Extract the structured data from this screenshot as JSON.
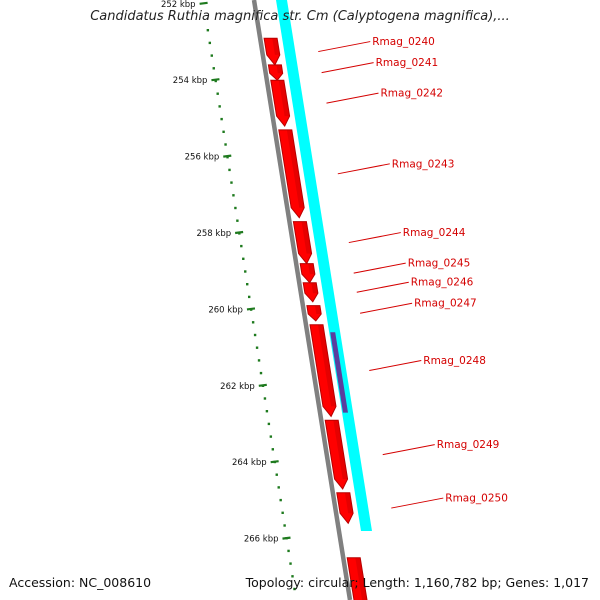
{
  "title": "Candidatus Ruthia magnifica str. Cm (Calyptogena magnifica),...",
  "footer": {
    "accession": "Accession: NC_008610",
    "summary": "Topology: circular; Length: 1,160,782 bp; Genes: 1,017"
  },
  "colors": {
    "forward_cds": "#ff0000",
    "forward_cds_shade": "#b80000",
    "feature_track": "#00ffff",
    "feature_highlight": "#5a3f9e",
    "backbone": "#808080",
    "ticks": "#1e7a1e",
    "label": "#d40000"
  },
  "ruler": {
    "ticks": [
      {
        "kbp": 252,
        "label": "252 kbp"
      },
      {
        "kbp": 254,
        "label": "254 kbp"
      },
      {
        "kbp": 256,
        "label": "256 kbp"
      },
      {
        "kbp": 258,
        "label": "258 kbp"
      },
      {
        "kbp": 260,
        "label": "260 kbp"
      },
      {
        "kbp": 262,
        "label": "262 kbp"
      },
      {
        "kbp": 264,
        "label": "264 kbp"
      },
      {
        "kbp": 266,
        "label": "266 kbp"
      }
    ]
  },
  "genes": [
    {
      "name": "Rmag_0240",
      "start_kbp": 252.9,
      "end_kbp": 253.6
    },
    {
      "name": "Rmag_0241",
      "start_kbp": 253.6,
      "end_kbp": 254.0
    },
    {
      "name": "Rmag_0242",
      "start_kbp": 254.0,
      "end_kbp": 255.2
    },
    {
      "name": "Rmag_0243",
      "start_kbp": 255.3,
      "end_kbp": 257.6
    },
    {
      "name": "Rmag_0244",
      "start_kbp": 257.7,
      "end_kbp": 258.8
    },
    {
      "name": "Rmag_0245",
      "start_kbp": 258.8,
      "end_kbp": 259.3
    },
    {
      "name": "Rmag_0246",
      "start_kbp": 259.3,
      "end_kbp": 259.8
    },
    {
      "name": "Rmag_0247",
      "start_kbp": 259.9,
      "end_kbp": 260.3
    },
    {
      "name": "Rmag_0248",
      "start_kbp": 260.4,
      "end_kbp": 262.8
    },
    {
      "name": "Rmag_0249",
      "start_kbp": 262.9,
      "end_kbp": 264.7
    },
    {
      "name": "Rmag_0250",
      "start_kbp": 264.8,
      "end_kbp": 265.6
    },
    {
      "name": "",
      "start_kbp": 266.5,
      "end_kbp": 268.0
    }
  ],
  "feature_track": {
    "start_kbp": 251.0,
    "end_kbp": 265.8
  },
  "feature_highlight": {
    "start_kbp": 260.6,
    "end_kbp": 262.7
  }
}
